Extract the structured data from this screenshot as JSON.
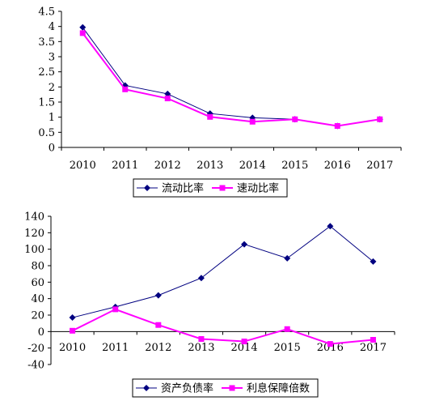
{
  "chart_data": [
    {
      "type": "line",
      "categories": [
        "2010",
        "2011",
        "2012",
        "2013",
        "2014",
        "2015",
        "2016",
        "2017"
      ],
      "ylim": [
        0,
        4.5
      ],
      "yticks": [
        "4.5",
        "4",
        "3.5",
        "3",
        "2.5",
        "2",
        "1.5",
        "1",
        "0.5",
        "0"
      ],
      "grid": false,
      "legend_position": "bottom",
      "series": [
        {
          "name": "流动比率",
          "color": "#000080",
          "marker": "diamond",
          "values": [
            3.97,
            2.05,
            1.77,
            1.12,
            0.98,
            0.93,
            0.71,
            0.93
          ]
        },
        {
          "name": "速动比率",
          "color": "#ff00ff",
          "marker": "square",
          "values": [
            3.78,
            1.92,
            1.62,
            1.01,
            0.85,
            0.93,
            0.71,
            0.93
          ]
        }
      ]
    },
    {
      "type": "line",
      "categories": [
        "2010",
        "2011",
        "2012",
        "2013",
        "2014",
        "2015",
        "2016",
        "2017"
      ],
      "ylim": [
        -40,
        140
      ],
      "yticks": [
        "140",
        "120",
        "100",
        "80",
        "60",
        "40",
        "20",
        "0",
        "-20",
        "-40"
      ],
      "grid": false,
      "legend_position": "bottom",
      "series": [
        {
          "name": "资产负债率",
          "color": "#000080",
          "marker": "diamond",
          "values": [
            17,
            30,
            44,
            65,
            106,
            89,
            128,
            85
          ]
        },
        {
          "name": "利息保障倍数",
          "color": "#ff00ff",
          "marker": "square",
          "values": [
            1,
            27,
            8,
            -9,
            -12,
            3,
            -15,
            -10
          ]
        }
      ]
    }
  ]
}
